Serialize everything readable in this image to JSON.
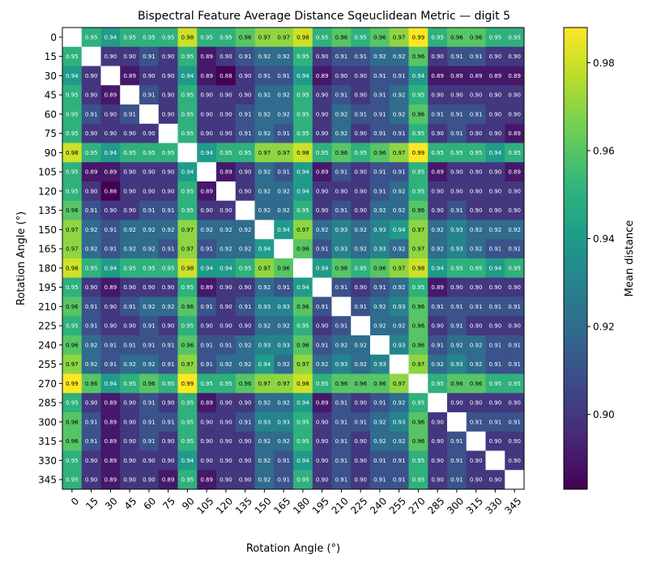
{
  "chart_data": {
    "type": "heatmap",
    "title": "Bispectral Feature Average Distance Sqeuclidean Metric — digit 5",
    "xlabel": "Rotation Angle (°)",
    "ylabel": "Rotation Angle (°)",
    "colorbar_label": "Mean distance",
    "colormap": "viridis",
    "color_range": [
      0.883,
      0.988
    ],
    "colorbar_ticks": [
      "0.90",
      "0.92",
      "0.94",
      "0.96",
      "0.98"
    ],
    "x_ticks": [
      "0",
      "15",
      "30",
      "45",
      "60",
      "75",
      "90",
      "105",
      "120",
      "135",
      "150",
      "165",
      "180",
      "195",
      "210",
      "225",
      "240",
      "255",
      "270",
      "285",
      "300",
      "315",
      "330",
      "345"
    ],
    "y_ticks": [
      "0",
      "15",
      "30",
      "45",
      "60",
      "75",
      "90",
      "105",
      "120",
      "135",
      "150",
      "165",
      "180",
      "195",
      "210",
      "225",
      "240",
      "255",
      "270",
      "285",
      "300",
      "315",
      "330",
      "345"
    ],
    "diagonal": "blank",
    "matrix": [
      [
        null,
        0.95,
        0.94,
        0.95,
        0.95,
        0.95,
        0.98,
        0.95,
        0.95,
        0.96,
        0.97,
        0.97,
        0.98,
        0.95,
        0.96,
        0.95,
        0.96,
        0.97,
        0.99,
        0.95,
        0.96,
        0.96,
        0.95,
        0.95
      ],
      [
        0.95,
        null,
        0.9,
        0.9,
        0.91,
        0.9,
        0.95,
        0.89,
        0.9,
        0.91,
        0.92,
        0.92,
        0.95,
        0.9,
        0.91,
        0.91,
        0.92,
        0.92,
        0.96,
        0.9,
        0.91,
        0.91,
        0.9,
        0.9
      ],
      [
        0.94,
        0.9,
        null,
        0.89,
        0.9,
        0.9,
        0.94,
        0.89,
        0.88,
        0.9,
        0.91,
        0.91,
        0.94,
        0.89,
        0.9,
        0.9,
        0.91,
        0.91,
        0.94,
        0.89,
        0.89,
        0.89,
        0.89,
        0.89
      ],
      [
        0.95,
        0.9,
        0.89,
        null,
        0.91,
        0.9,
        0.95,
        0.9,
        0.9,
        0.9,
        0.92,
        0.92,
        0.95,
        0.9,
        0.91,
        0.9,
        0.91,
        0.92,
        0.95,
        0.9,
        0.9,
        0.9,
        0.9,
        0.9
      ],
      [
        0.95,
        0.91,
        0.9,
        0.91,
        null,
        0.9,
        0.95,
        0.9,
        0.9,
        0.91,
        0.92,
        0.92,
        0.95,
        0.9,
        0.92,
        0.91,
        0.91,
        0.92,
        0.96,
        0.91,
        0.91,
        0.91,
        0.9,
        0.9
      ],
      [
        0.95,
        0.9,
        0.9,
        0.9,
        0.9,
        null,
        0.95,
        0.9,
        0.9,
        0.91,
        0.92,
        0.91,
        0.95,
        0.9,
        0.92,
        0.9,
        0.91,
        0.91,
        0.95,
        0.9,
        0.91,
        0.9,
        0.9,
        0.89
      ],
      [
        0.98,
        0.95,
        0.94,
        0.95,
        0.95,
        0.95,
        null,
        0.94,
        0.95,
        0.95,
        0.97,
        0.97,
        0.98,
        0.95,
        0.96,
        0.95,
        0.96,
        0.97,
        0.99,
        0.95,
        0.95,
        0.95,
        0.94,
        0.95
      ],
      [
        0.95,
        0.89,
        0.89,
        0.9,
        0.9,
        0.9,
        0.94,
        null,
        0.89,
        0.9,
        0.92,
        0.91,
        0.94,
        0.89,
        0.91,
        0.9,
        0.91,
        0.91,
        0.95,
        0.89,
        0.9,
        0.9,
        0.9,
        0.89
      ],
      [
        0.95,
        0.9,
        0.88,
        0.9,
        0.9,
        0.9,
        0.95,
        0.89,
        null,
        0.9,
        0.92,
        0.92,
        0.94,
        0.9,
        0.9,
        0.9,
        0.91,
        0.92,
        0.95,
        0.9,
        0.9,
        0.9,
        0.9,
        0.9
      ],
      [
        0.96,
        0.91,
        0.9,
        0.9,
        0.91,
        0.91,
        0.95,
        0.9,
        0.9,
        null,
        0.92,
        0.92,
        0.95,
        0.9,
        0.91,
        0.9,
        0.92,
        0.92,
        0.96,
        0.9,
        0.91,
        0.9,
        0.9,
        0.9
      ],
      [
        0.97,
        0.92,
        0.91,
        0.92,
        0.92,
        0.92,
        0.97,
        0.92,
        0.92,
        0.92,
        null,
        0.94,
        0.97,
        0.92,
        0.93,
        0.92,
        0.93,
        0.94,
        0.97,
        0.92,
        0.93,
        0.92,
        0.92,
        0.92
      ],
      [
        0.97,
        0.92,
        0.91,
        0.92,
        0.92,
        0.91,
        0.97,
        0.91,
        0.92,
        0.92,
        0.94,
        null,
        0.96,
        0.91,
        0.93,
        0.92,
        0.93,
        0.92,
        0.97,
        0.92,
        0.93,
        0.92,
        0.91,
        0.91
      ],
      [
        0.98,
        0.95,
        0.94,
        0.95,
        0.95,
        0.95,
        0.98,
        0.94,
        0.94,
        0.95,
        0.97,
        0.96,
        null,
        0.94,
        0.96,
        0.95,
        0.96,
        0.97,
        0.98,
        0.94,
        0.95,
        0.95,
        0.94,
        0.95
      ],
      [
        0.95,
        0.9,
        0.89,
        0.9,
        0.9,
        0.9,
        0.95,
        0.89,
        0.9,
        0.9,
        0.92,
        0.91,
        0.94,
        null,
        0.91,
        0.9,
        0.91,
        0.92,
        0.95,
        0.89,
        0.9,
        0.9,
        0.9,
        0.9
      ],
      [
        0.96,
        0.91,
        0.9,
        0.91,
        0.92,
        0.92,
        0.96,
        0.91,
        0.9,
        0.91,
        0.93,
        0.93,
        0.96,
        0.91,
        null,
        0.91,
        0.92,
        0.93,
        0.96,
        0.91,
        0.91,
        0.91,
        0.91,
        0.91
      ],
      [
        0.95,
        0.91,
        0.9,
        0.9,
        0.91,
        0.9,
        0.95,
        0.9,
        0.9,
        0.9,
        0.92,
        0.92,
        0.95,
        0.9,
        0.91,
        null,
        0.92,
        0.92,
        0.96,
        0.9,
        0.91,
        0.9,
        0.9,
        0.9
      ],
      [
        0.96,
        0.92,
        0.91,
        0.91,
        0.91,
        0.91,
        0.96,
        0.91,
        0.91,
        0.92,
        0.93,
        0.93,
        0.96,
        0.91,
        0.92,
        0.92,
        null,
        0.93,
        0.96,
        0.91,
        0.92,
        0.92,
        0.91,
        0.91
      ],
      [
        0.97,
        0.92,
        0.91,
        0.92,
        0.92,
        0.91,
        0.97,
        0.91,
        0.92,
        0.92,
        0.94,
        0.92,
        0.97,
        0.92,
        0.93,
        0.92,
        0.93,
        null,
        0.97,
        0.92,
        0.93,
        0.92,
        0.91,
        0.91
      ],
      [
        0.99,
        0.96,
        0.94,
        0.95,
        0.96,
        0.95,
        0.99,
        0.95,
        0.95,
        0.96,
        0.97,
        0.97,
        0.98,
        0.95,
        0.96,
        0.96,
        0.96,
        0.97,
        null,
        0.95,
        0.96,
        0.96,
        0.95,
        0.95
      ],
      [
        0.95,
        0.9,
        0.89,
        0.9,
        0.91,
        0.9,
        0.95,
        0.89,
        0.9,
        0.9,
        0.92,
        0.92,
        0.94,
        0.89,
        0.91,
        0.9,
        0.91,
        0.92,
        0.95,
        null,
        0.9,
        0.9,
        0.9,
        0.9
      ],
      [
        0.96,
        0.91,
        0.89,
        0.9,
        0.91,
        0.91,
        0.95,
        0.9,
        0.9,
        0.91,
        0.93,
        0.93,
        0.95,
        0.9,
        0.91,
        0.91,
        0.92,
        0.93,
        0.96,
        0.9,
        null,
        0.91,
        0.91,
        0.91
      ],
      [
        0.96,
        0.91,
        0.89,
        0.9,
        0.91,
        0.9,
        0.95,
        0.9,
        0.9,
        0.9,
        0.92,
        0.92,
        0.95,
        0.9,
        0.91,
        0.9,
        0.92,
        0.92,
        0.96,
        0.9,
        0.91,
        null,
        0.9,
        0.9
      ],
      [
        0.95,
        0.9,
        0.89,
        0.9,
        0.9,
        0.9,
        0.94,
        0.9,
        0.9,
        0.9,
        0.92,
        0.91,
        0.94,
        0.9,
        0.91,
        0.9,
        0.91,
        0.91,
        0.95,
        0.9,
        0.91,
        0.9,
        null,
        0.9
      ],
      [
        0.95,
        0.9,
        0.89,
        0.9,
        0.9,
        0.89,
        0.95,
        0.89,
        0.9,
        0.9,
        0.92,
        0.91,
        0.95,
        0.9,
        0.91,
        0.9,
        0.91,
        0.91,
        0.95,
        0.9,
        0.91,
        0.9,
        0.9,
        null
      ]
    ]
  }
}
